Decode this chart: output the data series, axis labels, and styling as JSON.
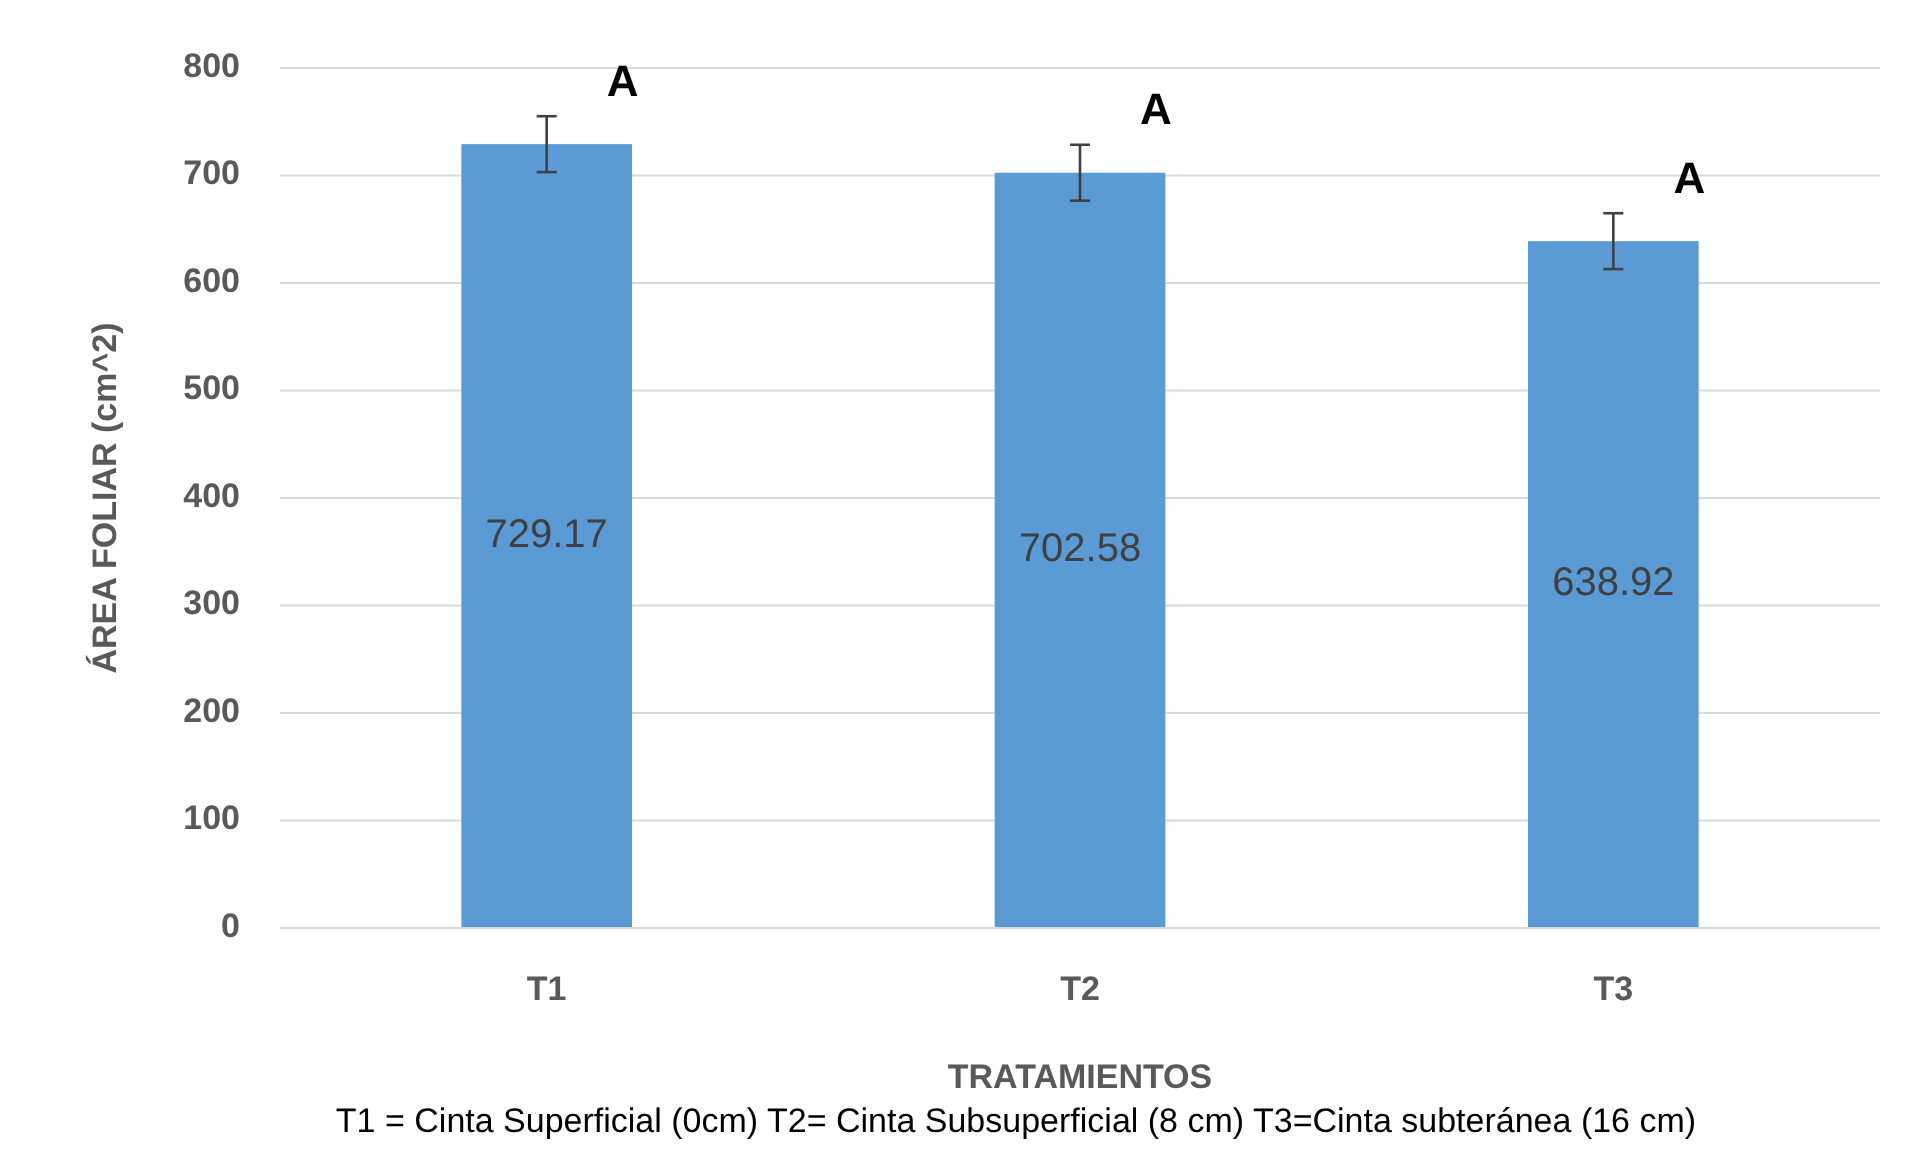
{
  "chart_data": {
    "type": "bar",
    "xlabel": "TRATAMIENTOS",
    "ylabel": "ÁREA FOLIAR (cm^2)",
    "categories": [
      "T1",
      "T2",
      "T3"
    ],
    "values": [
      729.17,
      702.58,
      638.92
    ],
    "errors": [
      26,
      26,
      26
    ],
    "value_labels": [
      "729.17",
      "702.58",
      "638.92"
    ],
    "color": "#5b9bd5",
    "ylim": [
      0,
      800
    ],
    "yticks": [
      0,
      100,
      200,
      300,
      400,
      500,
      600,
      700,
      800
    ],
    "grid": "y",
    "annotations": [
      "A",
      "A",
      "A",
      "T1 = Cinta Superficial (0cm)   T2= Cinta Subsuperficial (8 cm)   T3=Cinta subteránea (16 cm)"
    ]
  }
}
